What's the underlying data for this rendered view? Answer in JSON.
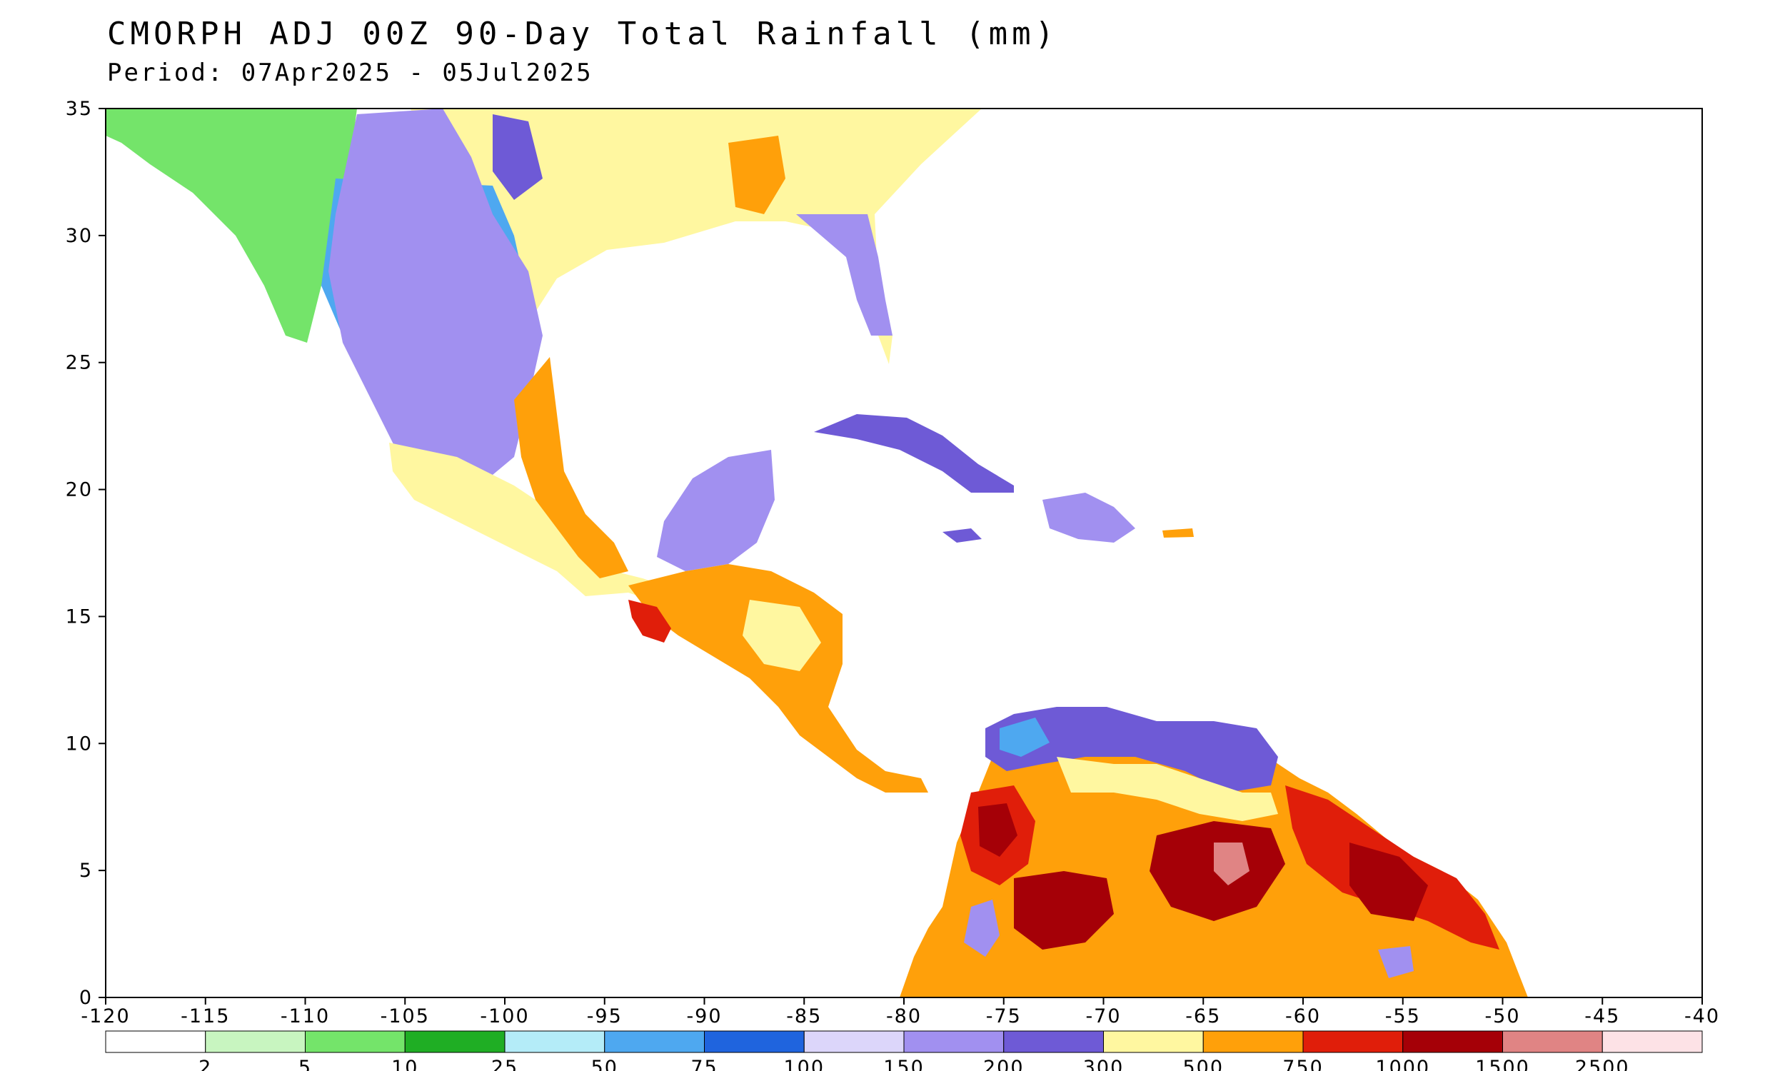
{
  "map": {
    "title": "CMORPH ADJ 00Z 90-Day Total Rainfall (mm)",
    "period": "Period: 07Apr2025 - 05Jul2025",
    "lon_ticks": [
      "-120",
      "-115",
      "-110",
      "-105",
      "-100",
      "-95",
      "-90",
      "-85",
      "-80",
      "-75",
      "-70",
      "-65",
      "-60",
      "-55",
      "-50",
      "-45",
      "-40"
    ],
    "lat_ticks": [
      "35",
      "30",
      "25",
      "20",
      "15",
      "10",
      "5",
      "0"
    ],
    "region": {
      "lon_min": -120,
      "lon_max": -40,
      "lat_min": 0,
      "lat_max": 35
    }
  },
  "colorbar": {
    "labels": [
      "2",
      "5",
      "10",
      "25",
      "50",
      "75",
      "100",
      "150",
      "200",
      "300",
      "500",
      "750",
      "1000",
      "1500",
      "2500"
    ],
    "colors": [
      "#ffffff",
      "#c8f5c0",
      "#74e46a",
      "#1fae24",
      "#b4ecf8",
      "#4ea8f0",
      "#1f64de",
      "#dcd6fa",
      "#a190f0",
      "#6e5ad6",
      "#fff7a0",
      "#ffa00a",
      "#e01e0a",
      "#a50007",
      "#e08484",
      "#fde2e6"
    ]
  }
}
